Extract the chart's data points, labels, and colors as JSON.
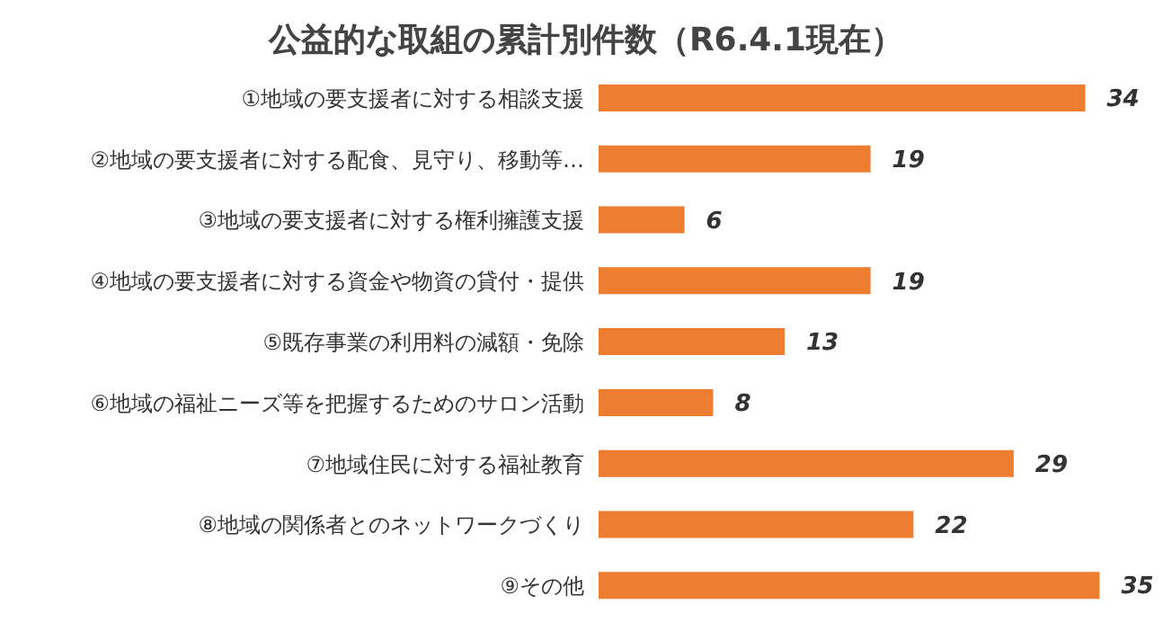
{
  "chart_data": {
    "type": "bar",
    "orientation": "horizontal",
    "title": "公益的な取組の累計別件数（R6.4.1現在）",
    "categories": [
      "①地域の要支援者に対する相談支援",
      "②地域の要支援者に対する配食、見守り、移動等…",
      "③地域の要支援者に対する権利擁護支援",
      "④地域の要支援者に対する資金や物資の貸付・提供",
      "⑤既存事業の利用料の減額・免除",
      "⑥地域の福祉ニーズ等を把握するためのサロン活動",
      "⑦地域住民に対する福祉教育",
      "⑧地域の関係者とのネットワークづくり",
      "⑨その他"
    ],
    "values": [
      34,
      19,
      6,
      19,
      13,
      8,
      29,
      22,
      35
    ],
    "color": "#ed7d31",
    "data_labels": true
  }
}
